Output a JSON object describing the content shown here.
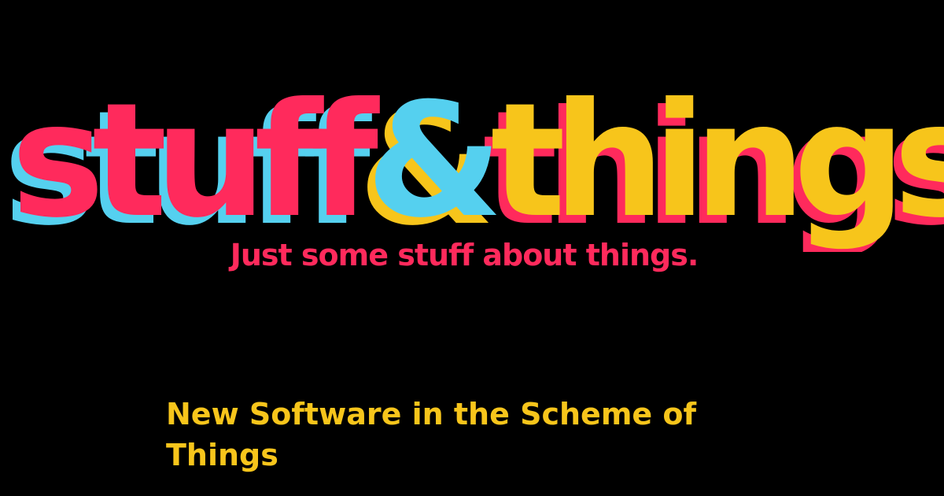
{
  "site": {
    "logo": {
      "word1": "stuff",
      "ampersand": "&",
      "word2": "things"
    },
    "tagline": "Just some stuff about things."
  },
  "post": {
    "title": "New Software in the Scheme of Things"
  },
  "colors": {
    "background": "#000000",
    "pink": "#ff2a5c",
    "cyan": "#55d0ef",
    "yellow": "#f7c51b"
  },
  "icons": []
}
